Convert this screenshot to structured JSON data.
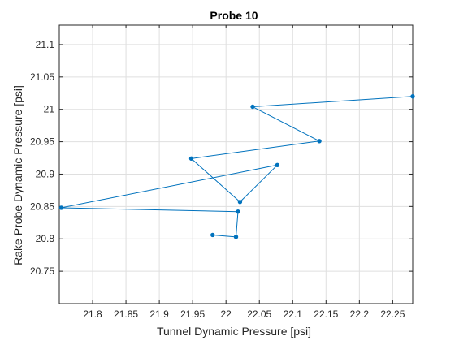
{
  "chart_data": {
    "type": "line",
    "title": "Probe 10",
    "xlabel": "Tunnel Dynamic Pressure [psi]",
    "ylabel": "Rake Probe Dynamic Pressure [psi]",
    "xlim": [
      21.75,
      22.28
    ],
    "ylim": [
      20.7,
      21.13
    ],
    "xticks": [
      "21.8",
      "21.85",
      "21.9",
      "21.95",
      "22",
      "22.05",
      "22.1",
      "22.15",
      "22.2",
      "22.25"
    ],
    "yticks": [
      "20.75",
      "20.8",
      "20.85",
      "20.9",
      "20.95",
      "21",
      "21.05",
      "21.1"
    ],
    "grid": true,
    "series": [
      {
        "color": "#0072BD",
        "marker": "dot",
        "x": [
          21.98,
          22.015,
          22.018,
          21.753,
          22.077,
          22.021,
          21.948,
          22.14,
          22.04,
          22.28
        ],
        "y": [
          20.806,
          20.803,
          20.842,
          20.848,
          20.914,
          20.857,
          20.924,
          20.951,
          21.004,
          21.02
        ]
      }
    ]
  }
}
